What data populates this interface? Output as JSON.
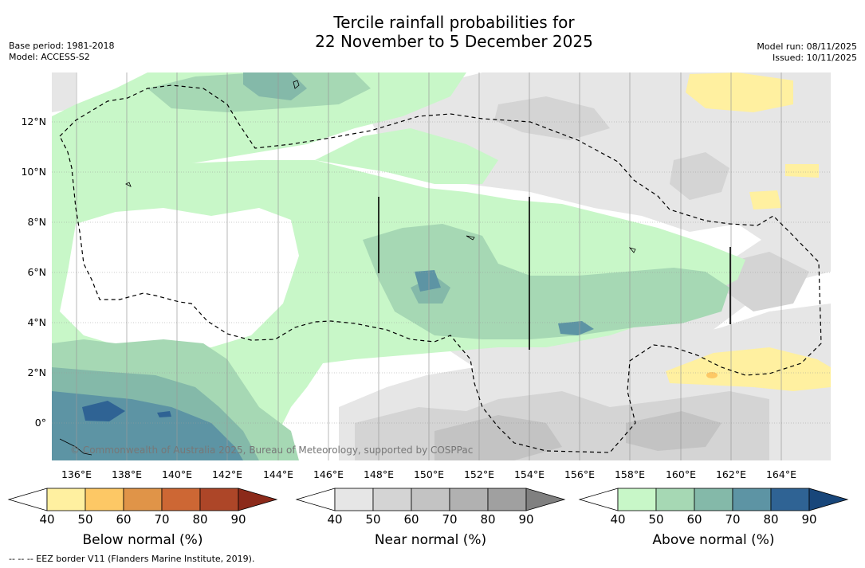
{
  "header": {
    "title_line1": "Tercile rainfall probabilities for",
    "title_line2": "22 November to 5 December 2025",
    "base_period": "Base period: 1981-2018",
    "model": "Model: ACCESS-S2",
    "model_run": "Model run: 08/11/2025",
    "issued": "Issued: 10/11/2025"
  },
  "map": {
    "lat_labels": [
      "12°N",
      "10°N",
      "8°N",
      "6°N",
      "4°N",
      "2°N",
      "0°"
    ],
    "lon_labels": [
      "136°E",
      "138°E",
      "140°E",
      "142°E",
      "144°E",
      "146°E",
      "148°E",
      "150°E",
      "152°E",
      "154°E",
      "156°E",
      "158°E",
      "160°E",
      "162°E",
      "164°E"
    ],
    "copyright": "© Commonwealth of Australia 2025, Bureau of Meteorology, supported by COSPPac"
  },
  "legend": {
    "below": {
      "title": "Below normal (%)",
      "ticks": [
        "40",
        "50",
        "60",
        "70",
        "80",
        "90"
      ],
      "colors": [
        "#fff0a0",
        "#fdc865",
        "#e09448",
        "#cd6734",
        "#ad4628",
        "#8c2a1a"
      ]
    },
    "near": {
      "title": "Near normal (%)",
      "ticks": [
        "40",
        "50",
        "60",
        "70",
        "80",
        "90"
      ],
      "colors": [
        "#e6e6e6",
        "#d4d4d4",
        "#c3c3c3",
        "#b1b1b1",
        "#a0a0a0",
        "#808080"
      ]
    },
    "above": {
      "title": "Above normal (%)",
      "ticks": [
        "40",
        "50",
        "60",
        "70",
        "80",
        "90"
      ],
      "colors": [
        "#c8f7c8",
        "#a6d8b4",
        "#84b9a9",
        "#5d94a4",
        "#2f6394",
        "#18467a"
      ]
    }
  },
  "footnote": "--  --  -- EEZ border V11 (Flanders Marine Institute, 2019)."
}
